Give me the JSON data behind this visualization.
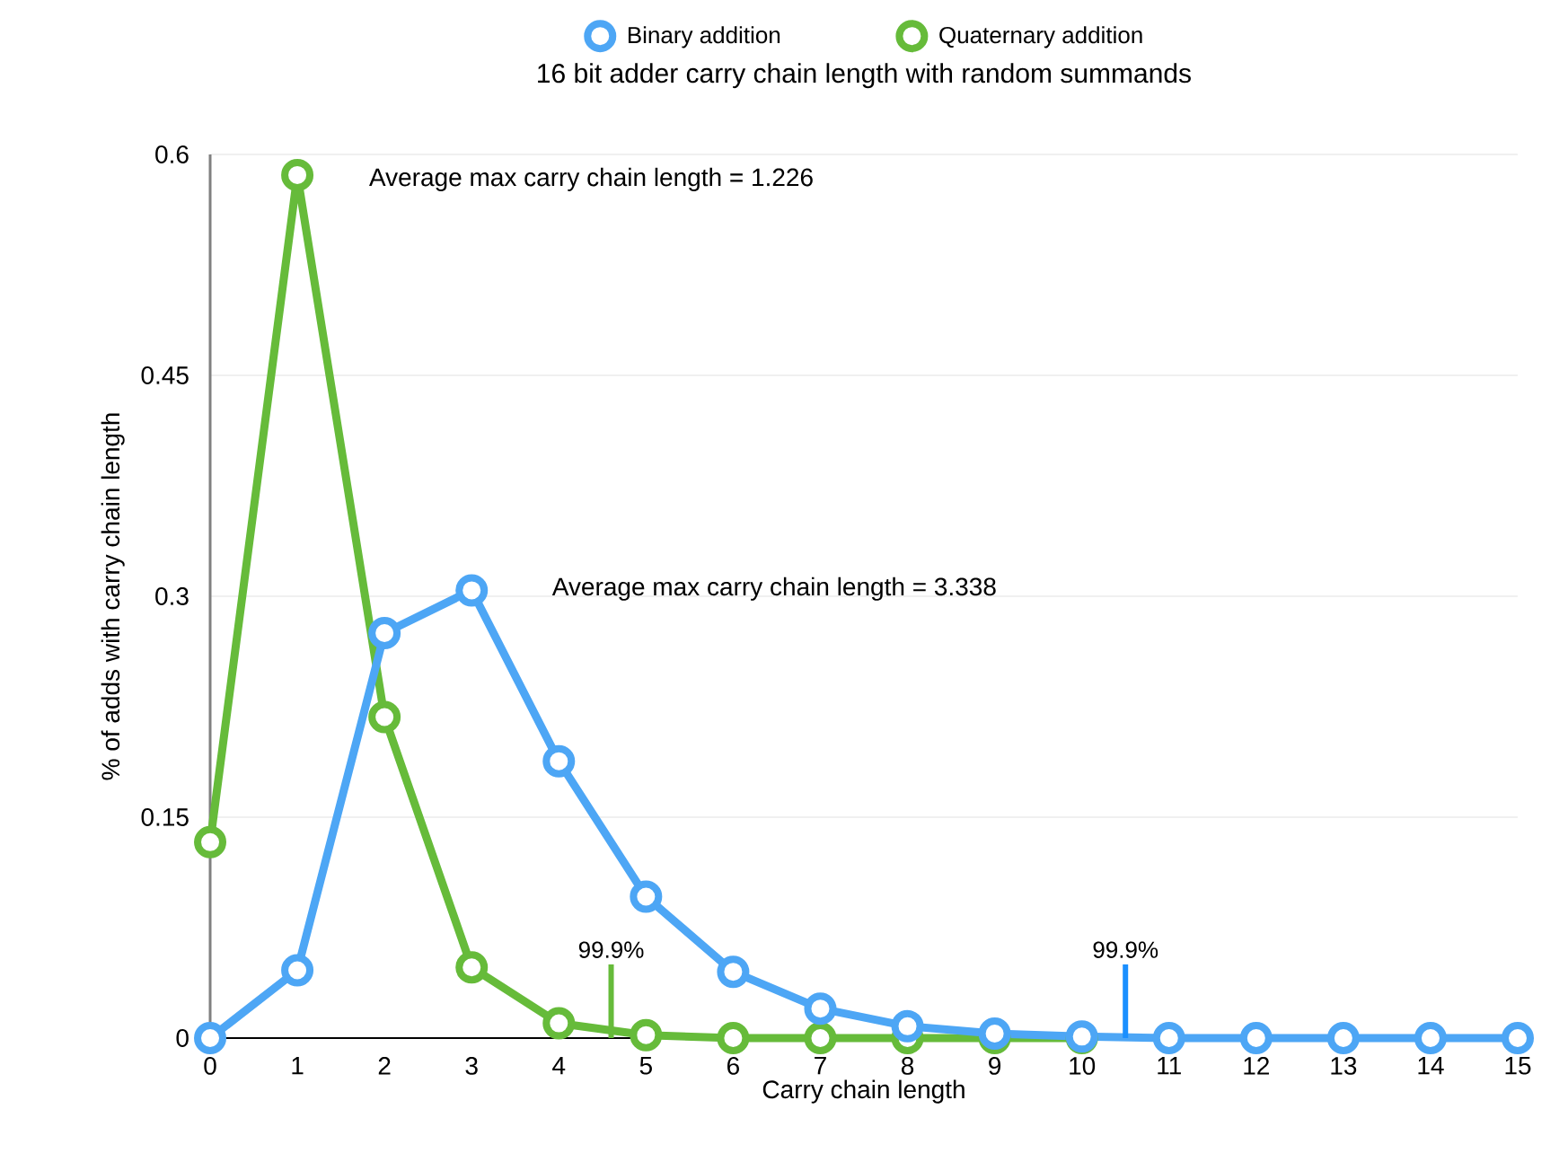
{
  "chart_data": {
    "type": "line",
    "title": "16 bit adder carry chain length with random summands",
    "xlabel": "Carry chain length",
    "ylabel": "% of adds with carry chain length",
    "x": [
      0,
      1,
      2,
      3,
      4,
      5,
      6,
      7,
      8,
      9,
      10,
      11,
      12,
      13,
      14,
      15
    ],
    "series": [
      {
        "name": "Binary addition",
        "color": "#4da6f5",
        "values": [
          0,
          0.046,
          0.275,
          0.304,
          0.188,
          0.096,
          0.045,
          0.02,
          0.008,
          0.003,
          0.001,
          0,
          0,
          0,
          0,
          0
        ]
      },
      {
        "name": "Quaternary addition",
        "color": "#66bb3a",
        "values": [
          0.133,
          0.586,
          0.218,
          0.048,
          0.01,
          0.002,
          0,
          0,
          0,
          0,
          0,
          null,
          null,
          null,
          null,
          null
        ]
      }
    ],
    "xlim": [
      0,
      15
    ],
    "xticks": [
      0,
      1,
      2,
      3,
      4,
      5,
      6,
      7,
      8,
      9,
      10,
      11,
      12,
      13,
      14,
      15
    ],
    "ylim": [
      0,
      0.6
    ],
    "yticks": [
      0,
      0.15,
      0.3,
      0.45,
      0.6
    ],
    "ref_lines": [
      {
        "axis": "x",
        "value": 4.6,
        "color": "#66bb3a"
      },
      {
        "axis": "x",
        "value": 10.5,
        "color": "#1a8fff"
      }
    ],
    "annotations": [
      "Average max carry chain length = 1.226",
      "Average max carry chain length = 3.338",
      {
        "text": "99.9%",
        "x": 4.6,
        "y": 0.05
      },
      {
        "text": "99.9%",
        "x": 10.5,
        "y": 0.05
      }
    ],
    "grid": "y",
    "legend": "top",
    "marker": "circle",
    "line_style": "solid"
  }
}
